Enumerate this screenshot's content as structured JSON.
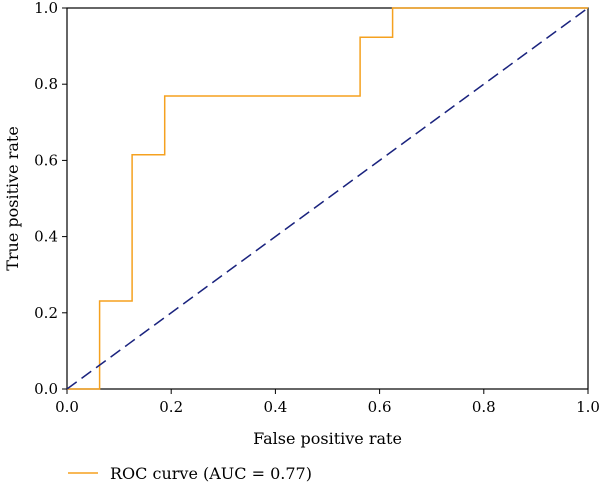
{
  "chart_data": {
    "type": "line",
    "xlabel": "False positive rate",
    "ylabel": "True positive rate",
    "xlim": [
      0,
      1
    ],
    "ylim": [
      0,
      1
    ],
    "x_ticks": [
      "0.0",
      "0.2",
      "0.4",
      "0.6",
      "0.8",
      "1.0"
    ],
    "y_ticks": [
      "0.0",
      "0.2",
      "0.4",
      "0.6",
      "0.8",
      "1.0"
    ],
    "grid": false,
    "legend_position": "bottom-left",
    "series": [
      {
        "name": "ROC curve (AUC = 0.77)",
        "color": "#f5a11f",
        "style": "step",
        "x": [
          0.0,
          0.0625,
          0.0625,
          0.125,
          0.125,
          0.1875,
          0.1875,
          0.5625,
          0.5625,
          0.625,
          0.625,
          1.0
        ],
        "y": [
          0.0,
          0.0,
          0.231,
          0.231,
          0.615,
          0.615,
          0.769,
          0.769,
          0.923,
          0.923,
          1.0,
          1.0
        ]
      },
      {
        "name": "",
        "color": "#1a237e",
        "style": "dashed",
        "x": [
          0,
          1
        ],
        "y": [
          0,
          1
        ]
      }
    ]
  }
}
